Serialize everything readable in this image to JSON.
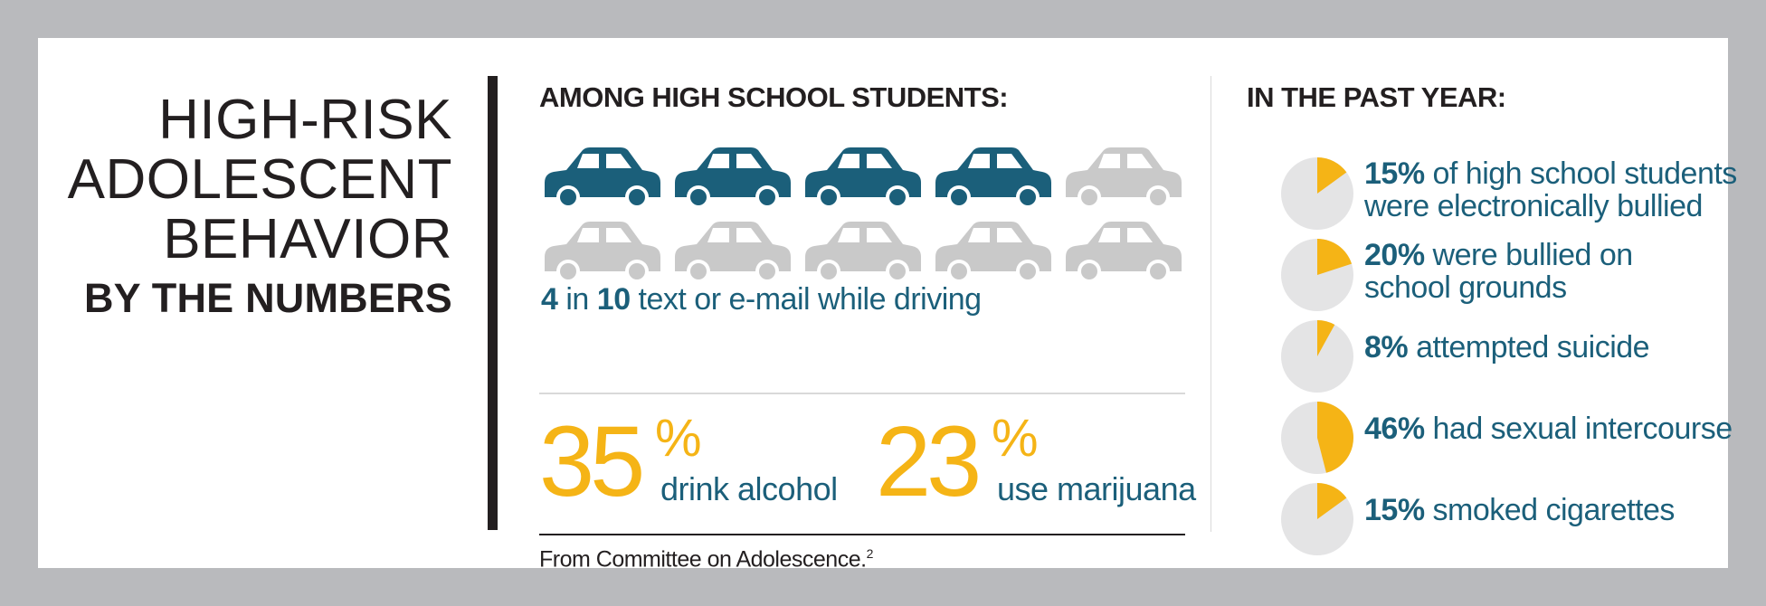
{
  "title": {
    "line1": "HIGH-RISK",
    "line2": "ADOLESCENT",
    "line3": "BEHAVIOR",
    "line4": "BY THE NUMBERS"
  },
  "middle": {
    "heading": "AMONG HIGH SCHOOL STUDENTS:",
    "cars": {
      "total": 10,
      "highlighted": 4,
      "icon": "car-icon"
    },
    "driving": {
      "num1": "4",
      "in": " in ",
      "num2": "10",
      "text": " text or e-mail while driving"
    },
    "alcohol": {
      "value": "35",
      "pct": "%",
      "label": "drink alcohol"
    },
    "marijuana": {
      "value": "23",
      "pct": "%",
      "label": "use marijuana"
    },
    "source": "From Committee on Adolescence.",
    "source_ref": "2"
  },
  "right": {
    "heading": "IN THE PAST YEAR:",
    "items": [
      {
        "percent": 15,
        "pct_label": "15%",
        "text1": " of high school students",
        "text2": "were electronically bullied"
      },
      {
        "percent": 20,
        "pct_label": "20%",
        "text1": " were bullied on",
        "text2": "school grounds"
      },
      {
        "percent": 8,
        "pct_label": "8%",
        "text1": " attempted suicide",
        "text2": ""
      },
      {
        "percent": 46,
        "pct_label": "46%",
        "text1": " had sexual intercourse",
        "text2": ""
      },
      {
        "percent": 15,
        "pct_label": "15%",
        "text1": " smoked cigarettes",
        "text2": ""
      }
    ]
  },
  "colors": {
    "frame": "#b9babd",
    "teal": "#1b5f7a",
    "yellow": "#f5b416",
    "gray_car": "#c9c9c9",
    "pie_bg": "#e4e4e5",
    "dark": "#231f20"
  }
}
